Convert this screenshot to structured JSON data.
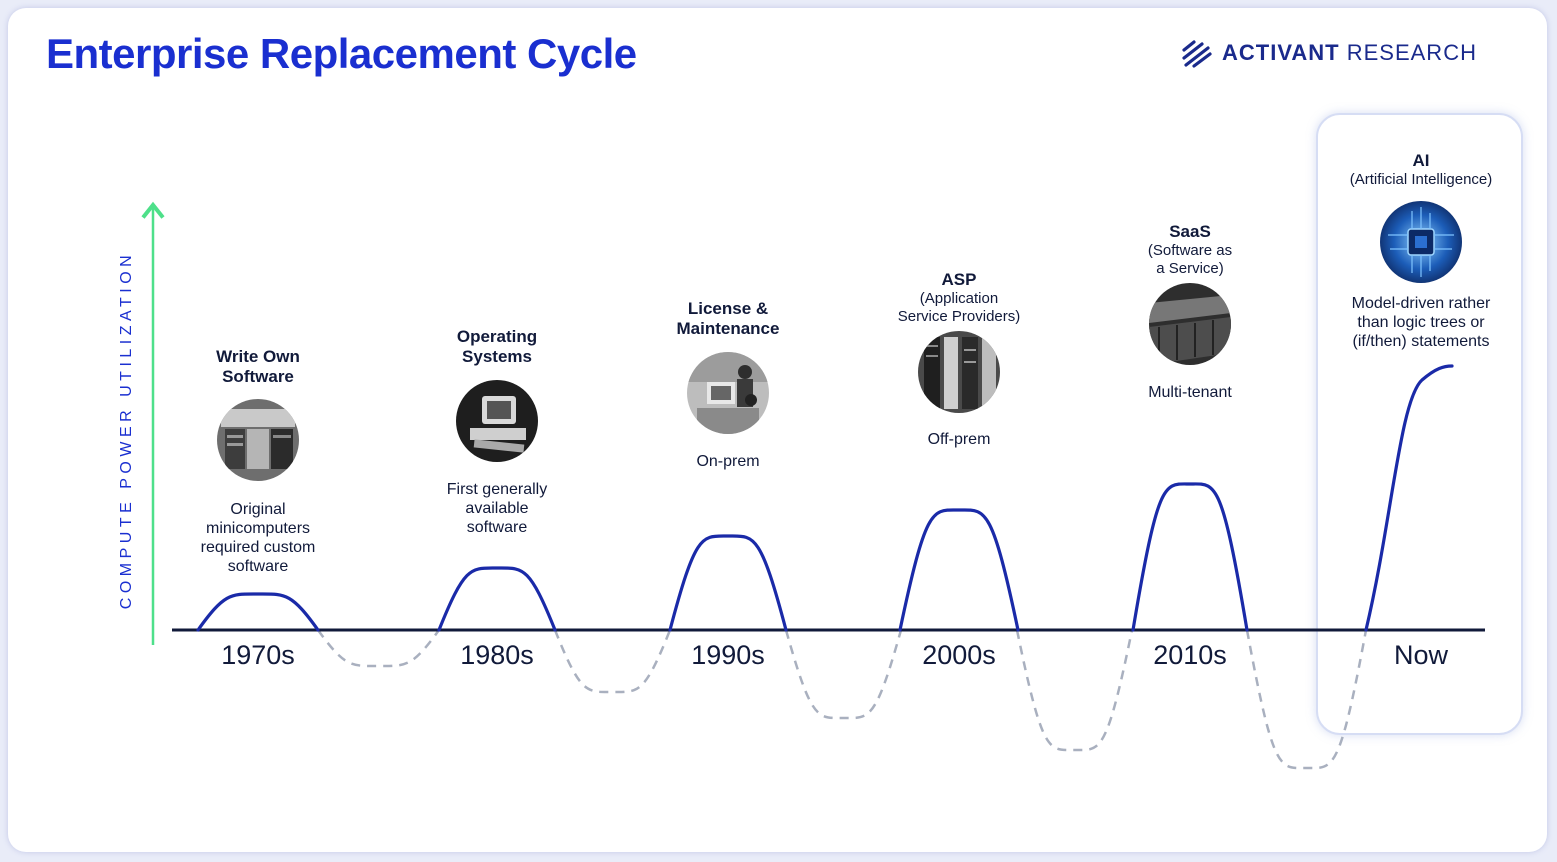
{
  "header": {
    "title": "Enterprise Replacement Cycle",
    "logo_brand": "ACTIVANT",
    "logo_suffix": "RESEARCH"
  },
  "axis": {
    "y_label": "COMPUTE POWER UTILIZATION"
  },
  "colors": {
    "title": "#1a2fd0",
    "curve": "#1a2aa8",
    "dashed_curve": "#a9b0bf",
    "arrow": "#4ee08a",
    "baseline": "#111a3a"
  },
  "eras": [
    {
      "decade": "1970s",
      "name": "Write Own\nSoftware",
      "sub": "",
      "description": "Original\nminicomputers\nrequired custom\nsoftware",
      "image": "minicomputer-room-photo",
      "peak_height": 0.16
    },
    {
      "decade": "1980s",
      "name": "Operating\nSystems",
      "sub": "",
      "description": "First generally\navailable\nsoftware",
      "image": "personal-computer-photo",
      "peak_height": 0.27
    },
    {
      "decade": "1990s",
      "name": "License &\nMaintenance",
      "sub": "",
      "description": "On-prem",
      "image": "office-workers-photo",
      "peak_height": 0.41
    },
    {
      "decade": "2000s",
      "name": "ASP",
      "sub": "(Application\nService Providers)",
      "description": "Off-prem",
      "image": "server-racks-photo",
      "peak_height": 0.53
    },
    {
      "decade": "2010s",
      "name": "SaaS",
      "sub": "(Software as\na Service)",
      "description": "Multi-tenant",
      "image": "datacenter-photo",
      "peak_height": 0.64
    },
    {
      "decade": "Now",
      "name": "AI",
      "sub": "(Artificial Intelligence)",
      "description": "Model-driven rather\nthan logic trees or\n(if/then) statements",
      "image": "ai-chip-photo",
      "peak_height": 1.0
    }
  ]
}
